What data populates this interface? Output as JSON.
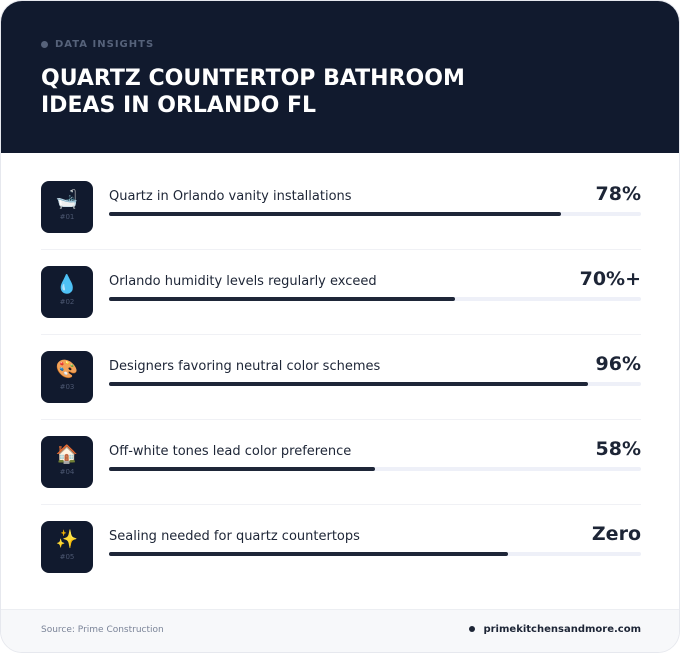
{
  "header": {
    "eyebrow": "DATA INSIGHTS",
    "title": "QUARTZ COUNTERTOP BATHROOM IDEAS IN ORLANDO FL"
  },
  "bar_range": [
    0,
    100
  ],
  "items": [
    {
      "rank": "#01",
      "label": "Quartz in Orlando vanity installations",
      "stat": "78%",
      "bar": 85
    },
    {
      "rank": "#02",
      "label": "Orlando humidity levels regularly exceed",
      "stat": "70%+",
      "bar": 65
    },
    {
      "rank": "#03",
      "label": "Designers favoring neutral color schemes",
      "stat": "96%",
      "bar": 90
    },
    {
      "rank": "#04",
      "label": "Off-white tones lead color preference",
      "stat": "58%",
      "bar": 50
    },
    {
      "rank": "#05",
      "label": "Sealing needed for quartz countertops",
      "stat": "Zero",
      "bar": 75
    }
  ],
  "footer": {
    "source": "Source: Prime Construction",
    "site": "primekitchensandmore.com"
  }
}
